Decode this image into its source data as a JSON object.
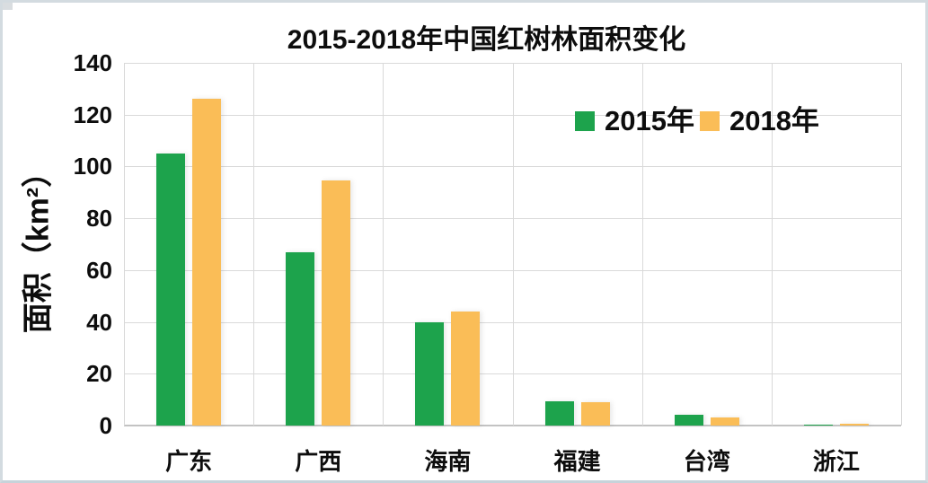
{
  "frame": {
    "background": "#ffffff",
    "border_color": "#d3dbe0"
  },
  "chart_data": {
    "type": "bar",
    "title": "2015-2018年中国红树林面积变化",
    "ylabel": "面积（km²）",
    "xlabel": "",
    "categories": [
      "广东",
      "广西",
      "海南",
      "福建",
      "台湾",
      "浙江"
    ],
    "series": [
      {
        "name": "2015年",
        "color": "#1da34c",
        "values": [
          105,
          67,
          40,
          9.5,
          4,
          0.2
        ]
      },
      {
        "name": "2018年",
        "color": "#fabd57",
        "values": [
          126,
          94.5,
          44,
          9,
          3,
          0.8
        ]
      }
    ],
    "ylim": [
      0,
      140
    ],
    "ytick_step": 20,
    "ytick_labels": [
      "0",
      "20",
      "40",
      "60",
      "80",
      "100",
      "120",
      "140"
    ],
    "grid": true,
    "grid_color": "#d9d9d9",
    "axis_color": "#c3c3c3",
    "text_color": "#0d0d0d",
    "legend_position": "top-right-inside"
  }
}
